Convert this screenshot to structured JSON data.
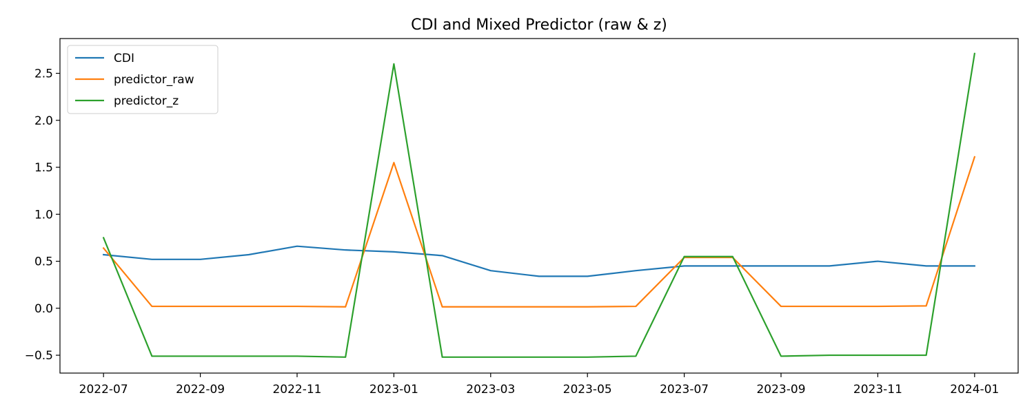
{
  "chart_data": {
    "type": "line",
    "title": "CDI and Mixed Predictor (raw & z)",
    "xlabel": "",
    "ylabel": "",
    "x": [
      "2022-07",
      "2022-08",
      "2022-09",
      "2022-10",
      "2022-11",
      "2022-12",
      "2023-01",
      "2023-02",
      "2023-03",
      "2023-04",
      "2023-05",
      "2023-06",
      "2023-07",
      "2023-08",
      "2023-09",
      "2023-10",
      "2023-11",
      "2023-12",
      "2024-01"
    ],
    "x_ticks": [
      "2022-07",
      "2022-09",
      "2022-11",
      "2023-01",
      "2023-03",
      "2023-05",
      "2023-07",
      "2023-09",
      "2023-11",
      "2024-01"
    ],
    "y_ticks": [
      -0.5,
      0.0,
      0.5,
      1.0,
      1.5,
      2.0,
      2.5
    ],
    "y_tick_labels": [
      "−0.5",
      "0.0",
      "0.5",
      "1.0",
      "1.5",
      "2.0",
      "2.5"
    ],
    "ylim": [
      -0.69,
      2.87
    ],
    "grid": false,
    "legend_position": "top-left",
    "series": [
      {
        "name": "CDI",
        "color": "#1f77b4",
        "values": [
          0.57,
          0.52,
          0.52,
          0.57,
          0.66,
          0.62,
          0.6,
          0.56,
          0.4,
          0.34,
          0.34,
          0.4,
          0.45,
          0.45,
          0.45,
          0.45,
          0.5,
          0.45,
          0.45
        ]
      },
      {
        "name": "predictor_raw",
        "color": "#ff7f0e",
        "values": [
          0.64,
          0.02,
          0.02,
          0.02,
          0.02,
          0.015,
          1.55,
          0.015,
          0.015,
          0.015,
          0.015,
          0.02,
          0.54,
          0.54,
          0.02,
          0.02,
          0.02,
          0.025,
          1.61
        ]
      },
      {
        "name": "predictor_z",
        "color": "#2ca02c",
        "values": [
          0.75,
          -0.51,
          -0.51,
          -0.51,
          -0.51,
          -0.52,
          2.6,
          -0.52,
          -0.52,
          -0.52,
          -0.52,
          -0.51,
          0.55,
          0.55,
          -0.51,
          -0.5,
          -0.5,
          -0.5,
          2.71
        ]
      }
    ]
  }
}
